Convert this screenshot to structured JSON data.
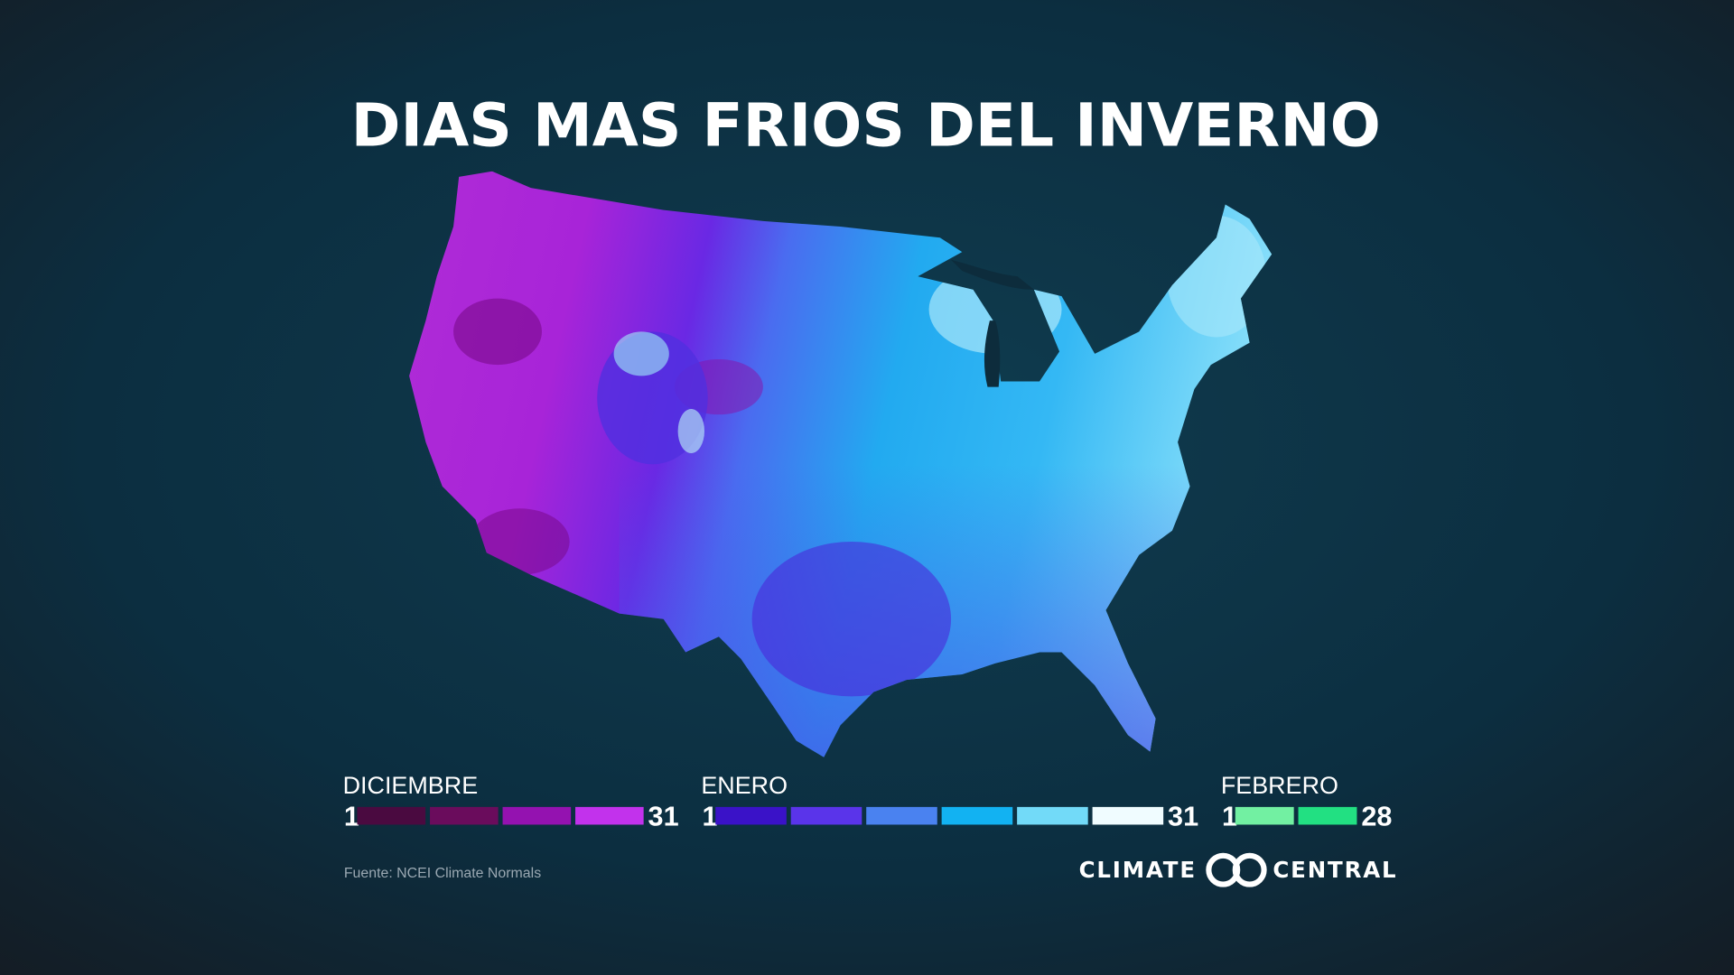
{
  "title": "DIAS MAS FRIOS DEL INVERNO",
  "legend": [
    {
      "month": "DICIEMBRE",
      "start": 1,
      "end": 31,
      "colors": [
        "#4a0a40",
        "#6a0c5c",
        "#9412b0",
        "#c232ec"
      ]
    },
    {
      "month": "ENERO",
      "start": 1,
      "end": 31,
      "colors": [
        "#3a12c8",
        "#5a34ea",
        "#4a82f0",
        "#12b2f2",
        "#72daf8",
        "#f0fcff"
      ]
    },
    {
      "month": "FEBRERO",
      "start": 1,
      "end": 28,
      "colors": [
        "#72f0a2",
        "#22e082"
      ]
    }
  ],
  "source": "Fuente: NCEI Climate Normals",
  "logo": {
    "left": "CLIMATE",
    "right": "CENTRAL"
  }
}
